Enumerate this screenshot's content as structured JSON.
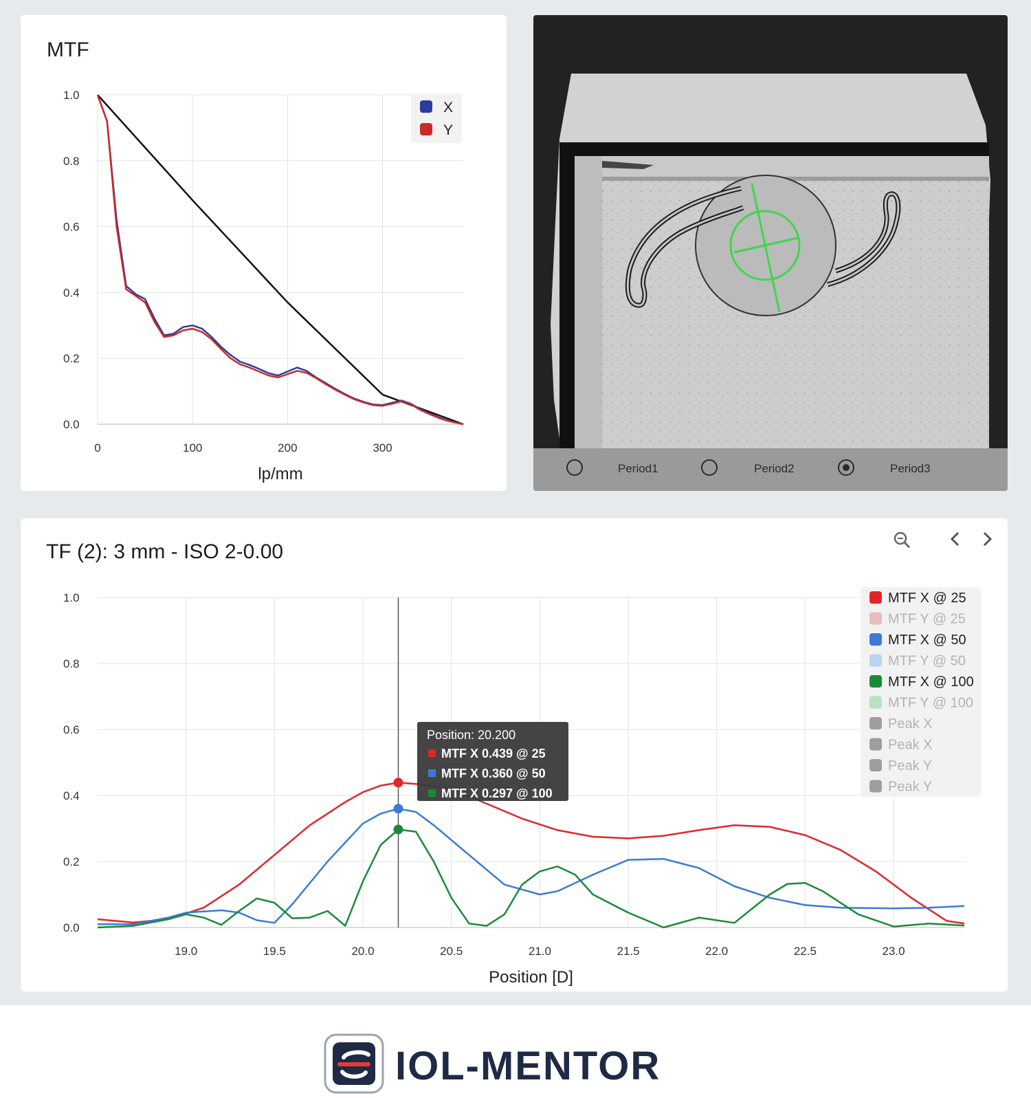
{
  "mtf_panel": {
    "title": "MTF",
    "chart_data": {
      "type": "line",
      "title": "MTF",
      "xlabel": "lp/mm",
      "ylabel": "",
      "xlim": [
        0,
        385
      ],
      "ylim": [
        0,
        1.0
      ],
      "x_ticks": [
        "0",
        "100",
        "200",
        "300"
      ],
      "y_ticks": [
        "0.0",
        "0.2",
        "0.4",
        "0.6",
        "0.8",
        "1.0"
      ],
      "grid": true,
      "legend": {
        "placement": "top-right",
        "entries": [
          {
            "label": "X",
            "color": "#2b3d9a"
          },
          {
            "label": "Y",
            "color": "#cc2a2a"
          }
        ]
      },
      "series": [
        {
          "name": "",
          "color": "#111111",
          "x": [
            0,
            100,
            200,
            300,
            385
          ],
          "y": [
            1.0,
            0.68,
            0.37,
            0.09,
            0.0
          ]
        },
        {
          "name": "X",
          "color": "#2b3d9a",
          "x": [
            0,
            10,
            20,
            30,
            40,
            50,
            60,
            70,
            80,
            90,
            100,
            110,
            120,
            130,
            140,
            150,
            160,
            170,
            180,
            190,
            200,
            210,
            220,
            230,
            240,
            250,
            260,
            270,
            280,
            290,
            300,
            310,
            320,
            330,
            340,
            350,
            360,
            370,
            385
          ],
          "y": [
            1.0,
            0.92,
            0.62,
            0.42,
            0.395,
            0.38,
            0.32,
            0.27,
            0.275,
            0.295,
            0.3,
            0.29,
            0.265,
            0.235,
            0.21,
            0.19,
            0.18,
            0.168,
            0.155,
            0.148,
            0.16,
            0.172,
            0.162,
            0.142,
            0.125,
            0.108,
            0.092,
            0.078,
            0.068,
            0.06,
            0.058,
            0.065,
            0.072,
            0.062,
            0.045,
            0.032,
            0.02,
            0.01,
            0.0
          ]
        },
        {
          "name": "Y",
          "color": "#cc2a2a",
          "x": [
            0,
            10,
            20,
            30,
            40,
            50,
            60,
            70,
            80,
            90,
            100,
            110,
            120,
            130,
            140,
            150,
            160,
            170,
            180,
            190,
            200,
            210,
            220,
            230,
            240,
            250,
            260,
            270,
            280,
            290,
            300,
            310,
            320,
            330,
            340,
            350,
            360,
            370,
            385
          ],
          "y": [
            1.0,
            0.92,
            0.6,
            0.41,
            0.39,
            0.37,
            0.31,
            0.265,
            0.27,
            0.285,
            0.29,
            0.28,
            0.258,
            0.228,
            0.2,
            0.182,
            0.172,
            0.16,
            0.148,
            0.142,
            0.152,
            0.162,
            0.156,
            0.14,
            0.122,
            0.105,
            0.09,
            0.076,
            0.066,
            0.058,
            0.056,
            0.062,
            0.07,
            0.06,
            0.043,
            0.03,
            0.018,
            0.009,
            0.0
          ]
        }
      ]
    }
  },
  "camera_panel": {
    "radios": [
      {
        "label": "Period1",
        "checked": false
      },
      {
        "label": "Period2",
        "checked": false
      },
      {
        "label": "Period3",
        "checked": true
      }
    ]
  },
  "tf_panel": {
    "title": "TF (2): 3 mm - ISO 2-0.00",
    "toolbar": {
      "zoom_icon": "zoom-icon",
      "prev_icon": "chevron-left-icon",
      "next_icon": "chevron-right-icon"
    },
    "tooltip": {
      "header": "Position: 20.200",
      "rows": [
        {
          "text": "MTF X 0.439 @ 25",
          "color": "#e0262a"
        },
        {
          "text": "MTF X 0.360 @ 50",
          "color": "#3a7bd5"
        },
        {
          "text": "MTF X 0.297 @ 100",
          "color": "#1a8a3a"
        }
      ]
    },
    "legend": [
      {
        "label": "MTF X @ 25",
        "color": "#e0262a",
        "active": true
      },
      {
        "label": "MTF Y @ 25",
        "color": "#e6bcbc",
        "active": false
      },
      {
        "label": "MTF X @ 50",
        "color": "#3a7bd5",
        "active": true
      },
      {
        "label": "MTF Y @ 50",
        "color": "#b8d4f0",
        "active": false
      },
      {
        "label": "MTF X @ 100",
        "color": "#1a8a3a",
        "active": true
      },
      {
        "label": "MTF Y @ 100",
        "color": "#b8e0c4",
        "active": false
      },
      {
        "label": "Peak X",
        "color": "#9e9e9e",
        "active": false
      },
      {
        "label": "Peak X",
        "color": "#9e9e9e",
        "active": false
      },
      {
        "label": "Peak Y",
        "color": "#9e9e9e",
        "active": false
      },
      {
        "label": "Peak Y",
        "color": "#9e9e9e",
        "active": false
      }
    ],
    "chart_data": {
      "type": "line",
      "title": "TF (2): 3 mm - ISO 2-0.00",
      "xlabel": "Position [D]",
      "ylabel": "",
      "xlim": [
        18.5,
        23.4
      ],
      "ylim": [
        0,
        1.0
      ],
      "x_ticks": [
        "19.0",
        "19.5",
        "20.0",
        "20.5",
        "21.0",
        "21.5",
        "22.0",
        "22.5",
        "23.0"
      ],
      "y_ticks": [
        "0.0",
        "0.2",
        "0.4",
        "0.6",
        "0.8",
        "1.0"
      ],
      "grid": true,
      "cursor_x": 20.2,
      "series": [
        {
          "name": "MTF X @ 25",
          "color": "#e0262a",
          "x": [
            18.5,
            18.7,
            18.9,
            19.1,
            19.3,
            19.5,
            19.7,
            19.9,
            20.0,
            20.1,
            20.2,
            20.3,
            20.5,
            20.7,
            20.9,
            21.1,
            21.3,
            21.5,
            21.7,
            21.9,
            22.1,
            22.3,
            22.5,
            22.7,
            22.9,
            23.1,
            23.3,
            23.4
          ],
          "y": [
            0.025,
            0.015,
            0.025,
            0.06,
            0.13,
            0.22,
            0.31,
            0.38,
            0.41,
            0.43,
            0.439,
            0.435,
            0.42,
            0.375,
            0.33,
            0.295,
            0.275,
            0.27,
            0.278,
            0.295,
            0.31,
            0.305,
            0.28,
            0.235,
            0.17,
            0.09,
            0.02,
            0.012
          ]
        },
        {
          "name": "MTF X @ 50",
          "color": "#3a7bd5",
          "x": [
            18.5,
            18.7,
            18.9,
            19.0,
            19.2,
            19.3,
            19.4,
            19.5,
            19.6,
            19.8,
            20.0,
            20.1,
            20.2,
            20.3,
            20.4,
            20.6,
            20.8,
            21.0,
            21.1,
            21.3,
            21.5,
            21.7,
            21.9,
            22.1,
            22.3,
            22.5,
            22.7,
            23.0,
            23.2,
            23.4
          ],
          "y": [
            0.01,
            0.01,
            0.03,
            0.045,
            0.052,
            0.045,
            0.022,
            0.014,
            0.07,
            0.2,
            0.315,
            0.345,
            0.36,
            0.35,
            0.31,
            0.22,
            0.13,
            0.1,
            0.11,
            0.16,
            0.205,
            0.208,
            0.18,
            0.125,
            0.09,
            0.068,
            0.06,
            0.058,
            0.06,
            0.065
          ]
        },
        {
          "name": "MTF X @ 100",
          "color": "#1a8a3a",
          "x": [
            18.5,
            18.7,
            18.9,
            19.0,
            19.1,
            19.2,
            19.3,
            19.4,
            19.5,
            19.6,
            19.7,
            19.8,
            19.9,
            20.0,
            20.1,
            20.2,
            20.3,
            20.4,
            20.5,
            20.6,
            20.7,
            20.8,
            20.9,
            21.0,
            21.1,
            21.2,
            21.3,
            21.5,
            21.7,
            21.9,
            22.1,
            22.3,
            22.4,
            22.5,
            22.6,
            22.8,
            23.0,
            23.2,
            23.4
          ],
          "y": [
            0.0,
            0.005,
            0.025,
            0.04,
            0.03,
            0.008,
            0.05,
            0.088,
            0.075,
            0.028,
            0.03,
            0.05,
            0.005,
            0.14,
            0.25,
            0.297,
            0.29,
            0.2,
            0.09,
            0.012,
            0.005,
            0.04,
            0.13,
            0.17,
            0.185,
            0.16,
            0.1,
            0.045,
            0.0,
            0.03,
            0.014,
            0.1,
            0.132,
            0.135,
            0.11,
            0.04,
            0.003,
            0.012,
            0.006
          ]
        }
      ]
    }
  },
  "brand": {
    "name": "IOL-MENTOR"
  }
}
